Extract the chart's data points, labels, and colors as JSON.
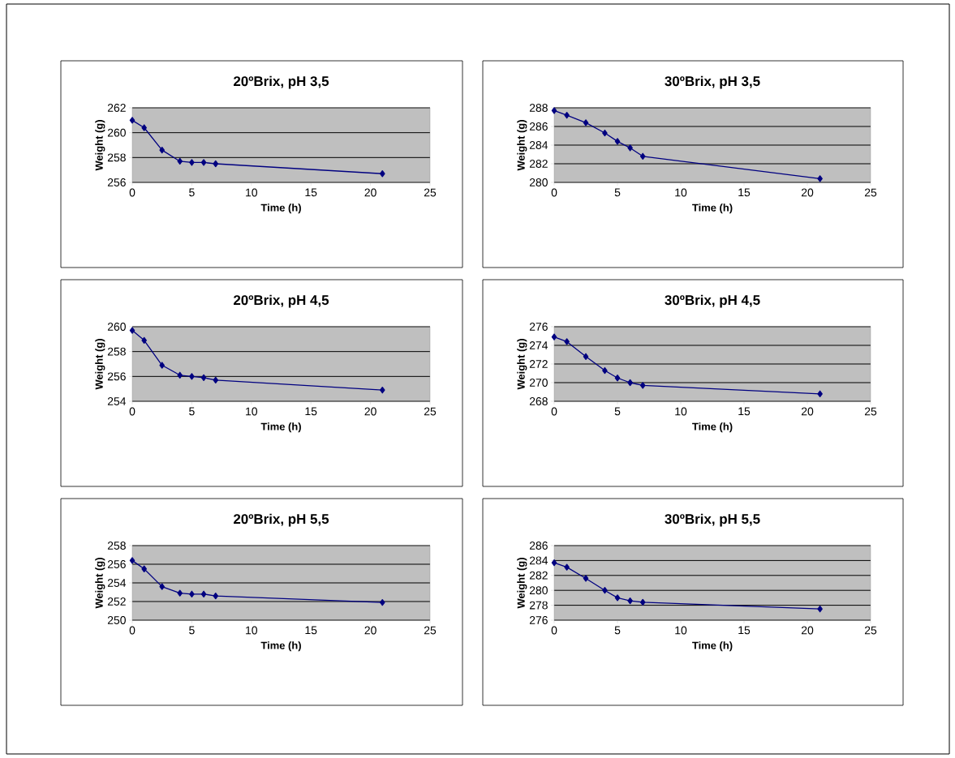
{
  "chart_data": [
    {
      "type": "line",
      "title": "20ºBrix, pH 3,5",
      "xlabel": "Time (h)",
      "ylabel": "Weight (g)",
      "x": [
        0,
        1,
        2.5,
        4,
        5,
        6,
        7,
        21
      ],
      "series": [
        {
          "color": "#000080",
          "values": [
            261.0,
            260.4,
            258.6,
            257.7,
            257.6,
            257.6,
            257.5,
            256.7
          ]
        }
      ],
      "xlim": [
        0,
        25
      ],
      "ylim": [
        256,
        262
      ],
      "xticks": [
        0,
        5,
        10,
        15,
        20,
        25
      ],
      "yticks": [
        256,
        258,
        260,
        262
      ],
      "grid": "y",
      "marker": "diamond"
    },
    {
      "type": "line",
      "title": "30ºBrix, pH 3,5",
      "xlabel": "Time (h)",
      "ylabel": "Weight (g)",
      "x": [
        0,
        1,
        2.5,
        4,
        5,
        6,
        7,
        21
      ],
      "series": [
        {
          "color": "#000080",
          "values": [
            287.7,
            287.2,
            286.4,
            285.3,
            284.4,
            283.7,
            282.8,
            280.4
          ]
        }
      ],
      "xlim": [
        0,
        25
      ],
      "ylim": [
        280,
        288
      ],
      "xticks": [
        0,
        5,
        10,
        15,
        20,
        25
      ],
      "yticks": [
        280,
        282,
        284,
        286,
        288
      ],
      "grid": "y",
      "marker": "diamond"
    },
    {
      "type": "line",
      "title": "20ºBrix, pH 4,5",
      "xlabel": "Time (h)",
      "ylabel": "Weight (g)",
      "x": [
        0,
        1,
        2.5,
        4,
        5,
        6,
        7,
        21
      ],
      "series": [
        {
          "color": "#000080",
          "values": [
            259.7,
            258.9,
            256.9,
            256.1,
            256.0,
            255.9,
            255.7,
            254.9
          ]
        }
      ],
      "xlim": [
        0,
        25
      ],
      "ylim": [
        254,
        260
      ],
      "xticks": [
        0,
        5,
        10,
        15,
        20,
        25
      ],
      "yticks": [
        254,
        256,
        258,
        260
      ],
      "grid": "y",
      "marker": "diamond"
    },
    {
      "type": "line",
      "title": "30ºBrix, pH 4,5",
      "xlabel": "Time (h)",
      "ylabel": "Weight (g)",
      "x": [
        0,
        1,
        2.5,
        4,
        5,
        6,
        7,
        21
      ],
      "series": [
        {
          "color": "#000080",
          "values": [
            274.9,
            274.4,
            272.8,
            271.3,
            270.5,
            270.0,
            269.7,
            268.8
          ]
        }
      ],
      "xlim": [
        0,
        25
      ],
      "ylim": [
        268,
        276
      ],
      "xticks": [
        0,
        5,
        10,
        15,
        20,
        25
      ],
      "yticks": [
        268,
        270,
        272,
        274,
        276
      ],
      "grid": "y",
      "marker": "diamond"
    },
    {
      "type": "line",
      "title": "20ºBrix, pH 5,5",
      "xlabel": "Time (h)",
      "ylabel": "Weight (g)",
      "x": [
        0,
        1,
        2.5,
        4,
        5,
        6,
        7,
        21
      ],
      "series": [
        {
          "color": "#000080",
          "values": [
            256.4,
            255.5,
            253.6,
            252.9,
            252.8,
            252.8,
            252.6,
            251.9
          ]
        }
      ],
      "xlim": [
        0,
        25
      ],
      "ylim": [
        250,
        258
      ],
      "xticks": [
        0,
        5,
        10,
        15,
        20,
        25
      ],
      "yticks": [
        250,
        252,
        254,
        256,
        258
      ],
      "grid": "y",
      "marker": "diamond"
    },
    {
      "type": "line",
      "title": "30ºBrix, pH 5,5",
      "xlabel": "Time (h)",
      "ylabel": "Weight (g)",
      "x": [
        0,
        1,
        2.5,
        4,
        5,
        6,
        7,
        21
      ],
      "series": [
        {
          "color": "#000080",
          "values": [
            283.7,
            283.1,
            281.6,
            280.0,
            279.0,
            278.6,
            278.4,
            277.5
          ]
        }
      ],
      "xlim": [
        0,
        25
      ],
      "ylim": [
        276,
        286
      ],
      "xticks": [
        0,
        5,
        10,
        15,
        20,
        25
      ],
      "yticks": [
        276,
        278,
        280,
        282,
        284,
        286
      ],
      "grid": "y",
      "marker": "diamond"
    }
  ]
}
